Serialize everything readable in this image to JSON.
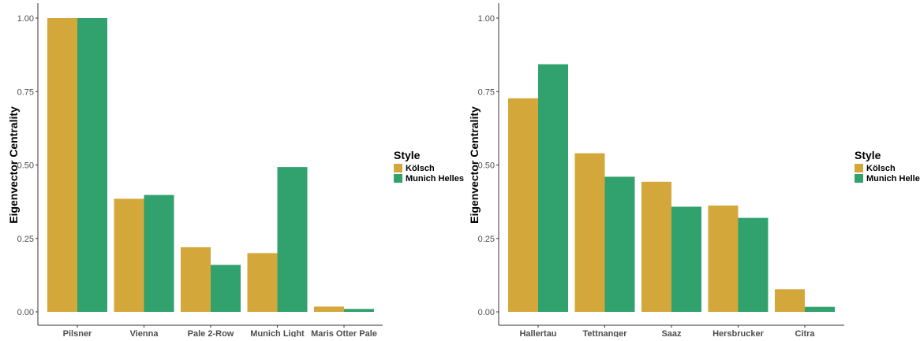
{
  "chart_data": [
    {
      "type": "bar",
      "categories": [
        "Pilsner",
        "Vienna",
        "Pale 2-Row",
        "Munich Light",
        "Maris Otter Pale"
      ],
      "series": [
        {
          "name": "Kölsch",
          "values": [
            1.0,
            0.385,
            0.22,
            0.2,
            0.018
          ],
          "color": "#D4A73A"
        },
        {
          "name": "Munich Helles",
          "values": [
            1.0,
            0.398,
            0.16,
            0.493,
            0.01
          ],
          "color": "#31A26D"
        }
      ],
      "ylabel": "Eigenvector Centrality",
      "xlabel": "",
      "ylim": [
        0,
        1.0
      ],
      "yticks": [
        "0.00",
        "0.25",
        "0.50",
        "0.75",
        "1.00"
      ],
      "legend_title": "Style",
      "legend_position": "right",
      "grid": false
    },
    {
      "type": "bar",
      "categories": [
        "Hallertau",
        "Tettnanger",
        "Saaz",
        "Hersbrucker",
        "Citra"
      ],
      "series": [
        {
          "name": "Kölsch",
          "values": [
            0.727,
            0.54,
            0.443,
            0.362,
            0.077
          ],
          "color": "#D4A73A"
        },
        {
          "name": "Munich Helles",
          "values": [
            0.843,
            0.46,
            0.358,
            0.32,
            0.017
          ],
          "color": "#31A26D"
        }
      ],
      "ylabel": "Eigenvector Centrality",
      "xlabel": "",
      "ylim": [
        0,
        1.0
      ],
      "yticks": [
        "0.00",
        "0.25",
        "0.50",
        "0.75",
        "1.00"
      ],
      "legend_title": "Style",
      "legend_position": "right",
      "grid": false
    }
  ]
}
